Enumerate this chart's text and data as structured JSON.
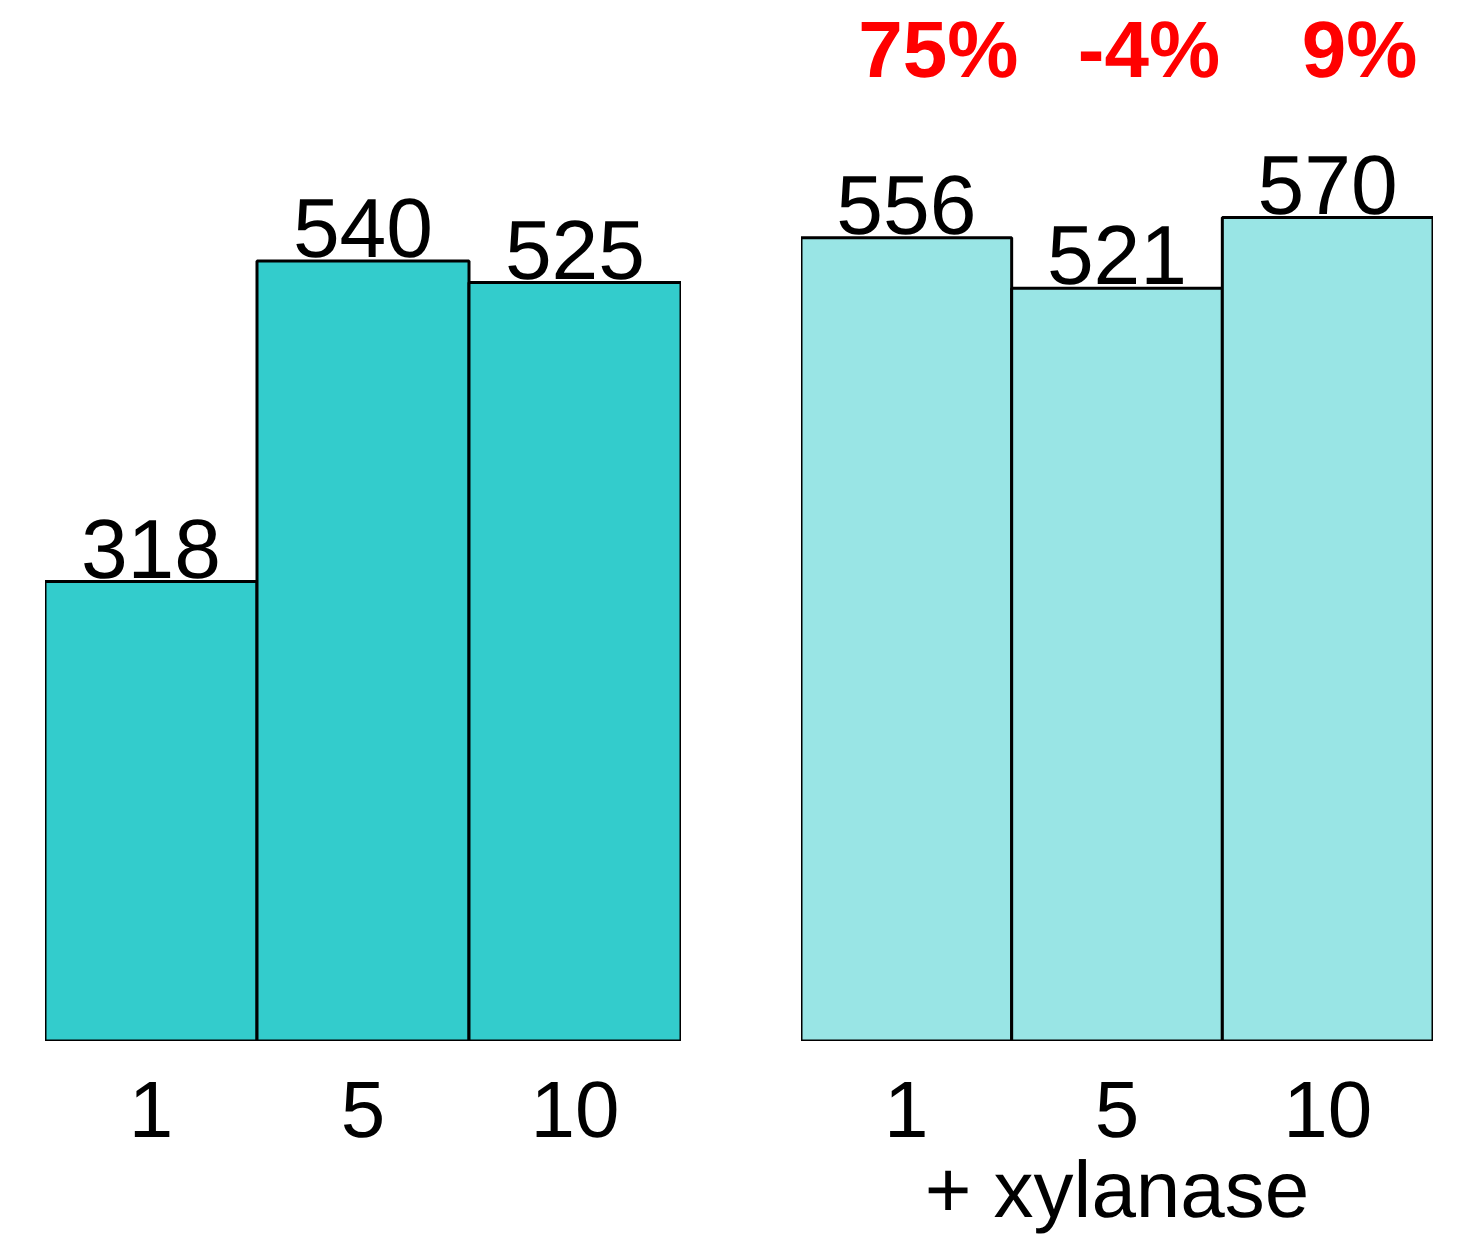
{
  "chart_data": [
    {
      "type": "bar",
      "categories": [
        "1",
        "5",
        "10"
      ],
      "values": [
        318,
        540,
        525
      ],
      "color": "#33cccc",
      "data_labels": true,
      "tick_labels": "x"
    },
    {
      "type": "bar",
      "categories": [
        "1",
        "5",
        "10"
      ],
      "values": [
        556,
        521,
        570
      ],
      "color": "#99e5e5",
      "data_labels": true,
      "tick_labels": "x",
      "xlabel": "+ xylanase",
      "annotations": [
        "75%",
        "-4%",
        "9%"
      ]
    }
  ]
}
